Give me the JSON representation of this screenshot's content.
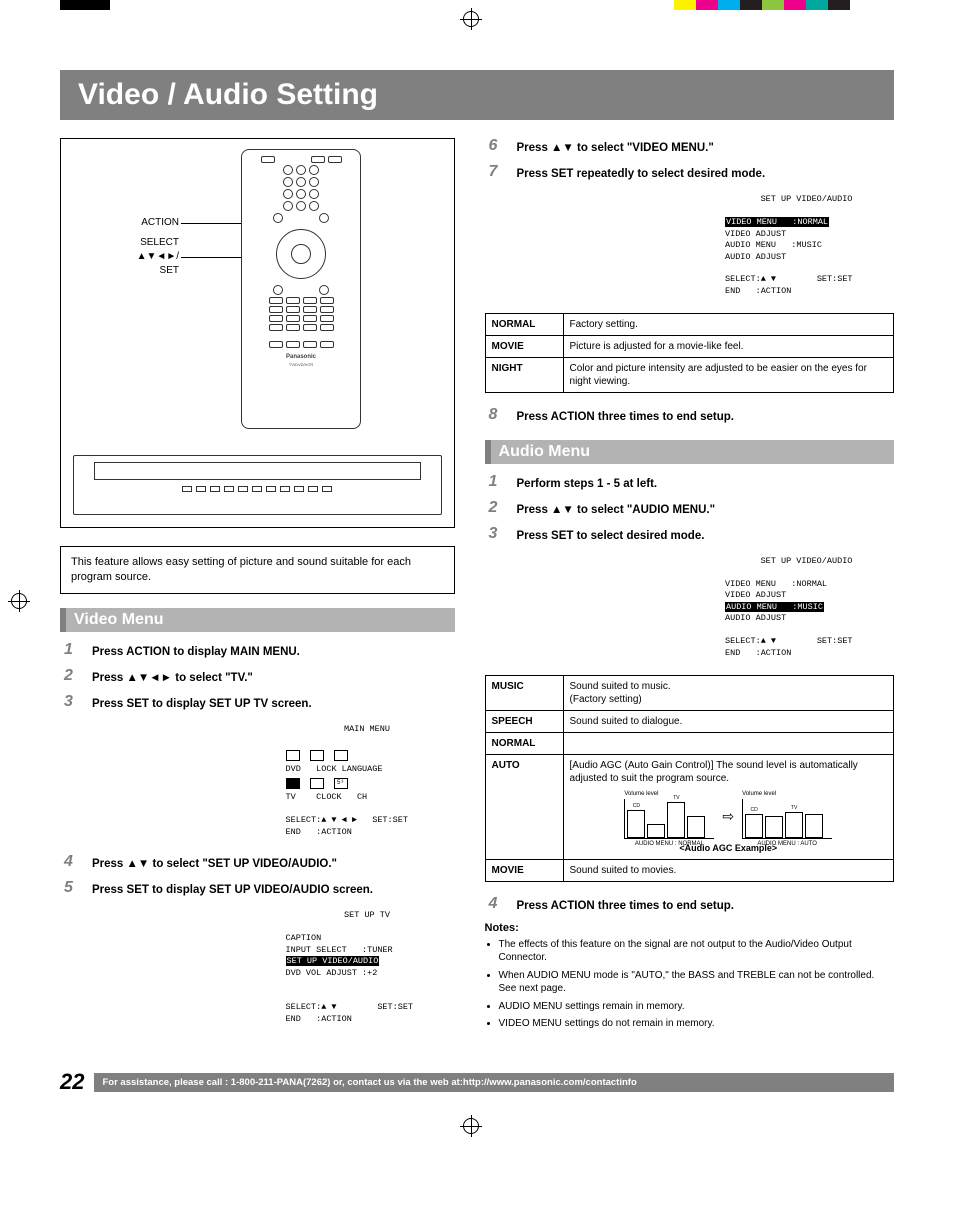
{
  "color_bar": [
    "#ffffff",
    "#fff200",
    "#ec008c",
    "#00aeef",
    "#231f20",
    "#8dc63e",
    "#ec008c",
    "#00a99d",
    "#231f20",
    "#ffffff",
    "#ffffff"
  ],
  "title": "Video / Audio Setting",
  "remote_labels": {
    "action": "ACTION",
    "select": "SELECT",
    "arrows": "▲▼◄►/",
    "set": "SET"
  },
  "remote_brand": "Panasonic",
  "remote_model": "TV/DVD/VCR",
  "intro": "This feature allows easy setting of picture and sound suitable for each program source.",
  "video_menu": {
    "heading": "Video Menu",
    "steps": [
      "Press ACTION to display MAIN MENU.",
      "Press ▲▼◄► to select \"TV.\"",
      "Press SET to display SET UP TV screen.",
      "Press ▲▼ to select \"SET UP VIDEO/AUDIO.\"",
      "Press SET to display SET UP VIDEO/AUDIO screen."
    ]
  },
  "osd_main": {
    "title": "MAIN MENU",
    "row1": [
      "DVD",
      "LOCK",
      "LANGUAGE"
    ],
    "row2": [
      "TV",
      "CLOCK",
      "CH"
    ],
    "footer1": "SELECT:▲ ▼ ◄ ►   SET:SET",
    "footer2": "END   :ACTION"
  },
  "osd_tv": {
    "title": "SET UP TV",
    "lines": [
      "CAPTION",
      "INPUT SELECT   :TUNER"
    ],
    "highlight": "SET UP VIDEO/AUDIO",
    "lines2": [
      "DVD VOL ADJUST :+2"
    ],
    "footer1": "SELECT:▲ ▼        SET:SET",
    "footer2": "END   :ACTION"
  },
  "right_steps_a": [
    {
      "n": "6",
      "t": "Press ▲▼ to select \"VIDEO MENU.\""
    },
    {
      "n": "7",
      "t": "Press SET repeatedly to select desired mode."
    }
  ],
  "osd_va1": {
    "title": "SET UP VIDEO/AUDIO",
    "highlight": "VIDEO MENU   :NORMAL",
    "lines": [
      "VIDEO ADJUST",
      "AUDIO MENU   :MUSIC",
      "AUDIO ADJUST"
    ],
    "footer1": "SELECT:▲ ▼        SET:SET",
    "footer2": "END   :ACTION"
  },
  "video_modes": [
    {
      "k": "NORMAL",
      "v": "Factory setting."
    },
    {
      "k": "MOVIE",
      "v": "Picture is adjusted for a movie-like feel."
    },
    {
      "k": "NIGHT",
      "v": "Color and picture intensity are adjusted to be easier on the eyes for night viewing."
    }
  ],
  "step8": {
    "n": "8",
    "t": "Press ACTION three times to end setup."
  },
  "audio_menu": {
    "heading": "Audio Menu",
    "steps": [
      {
        "n": "1",
        "t": "Perform steps 1 - 5 at left."
      },
      {
        "n": "2",
        "t": "Press ▲▼ to select \"AUDIO MENU.\""
      },
      {
        "n": "3",
        "t": "Press SET to select desired mode."
      }
    ]
  },
  "osd_va2": {
    "title": "SET UP VIDEO/AUDIO",
    "lines1": [
      "VIDEO MENU   :NORMAL",
      "VIDEO ADJUST"
    ],
    "highlight": "AUDIO MENU   :MUSIC",
    "lines2": [
      "AUDIO ADJUST"
    ],
    "footer1": "SELECT:▲ ▼        SET:SET",
    "footer2": "END   :ACTION"
  },
  "audio_modes": {
    "music": {
      "k": "MUSIC",
      "v": "Sound suited to music.\n(Factory setting)"
    },
    "speech": {
      "k": "SPEECH",
      "v": "Sound suited to dialogue."
    },
    "normal": {
      "k": "NORMAL",
      "v": ""
    },
    "auto": {
      "k": "AUTO",
      "desc": "[Audio AGC (Auto Gain Control)] The sound level is automatically adjusted to suit the program source.",
      "vol_label": "Volume level",
      "ticks": [
        "High",
        "Standard",
        "Low"
      ],
      "bars_left": {
        "heights": [
          28,
          14,
          36,
          22
        ],
        "labels": [
          "CD",
          "",
          "TV",
          ""
        ]
      },
      "bars_right": {
        "heights": [
          24,
          22,
          26,
          24
        ],
        "labels": [
          "CD",
          "",
          "TV",
          ""
        ]
      },
      "caption_left": "AUDIO MENU : NORMAL",
      "caption_right": "AUDIO MENU : AUTO",
      "example": "<Audio AGC Example>"
    },
    "movie": {
      "k": "MOVIE",
      "v": "Sound suited to movies."
    }
  },
  "step4_audio": {
    "n": "4",
    "t": "Press ACTION three times to end setup."
  },
  "notes_head": "Notes:",
  "notes": [
    "The effects of this feature on the signal are not output to the Audio/Video Output Connector.",
    "When AUDIO MENU mode is \"AUTO,\" the BASS and TREBLE can not be controlled. See next page.",
    "AUDIO MENU settings remain in memory.",
    "VIDEO MENU settings do not remain in memory."
  ],
  "page_number": "22",
  "footer": "For assistance, please call : 1-800-211-PANA(7262) or, contact us via the web at:http://www.panasonic.com/contactinfo"
}
